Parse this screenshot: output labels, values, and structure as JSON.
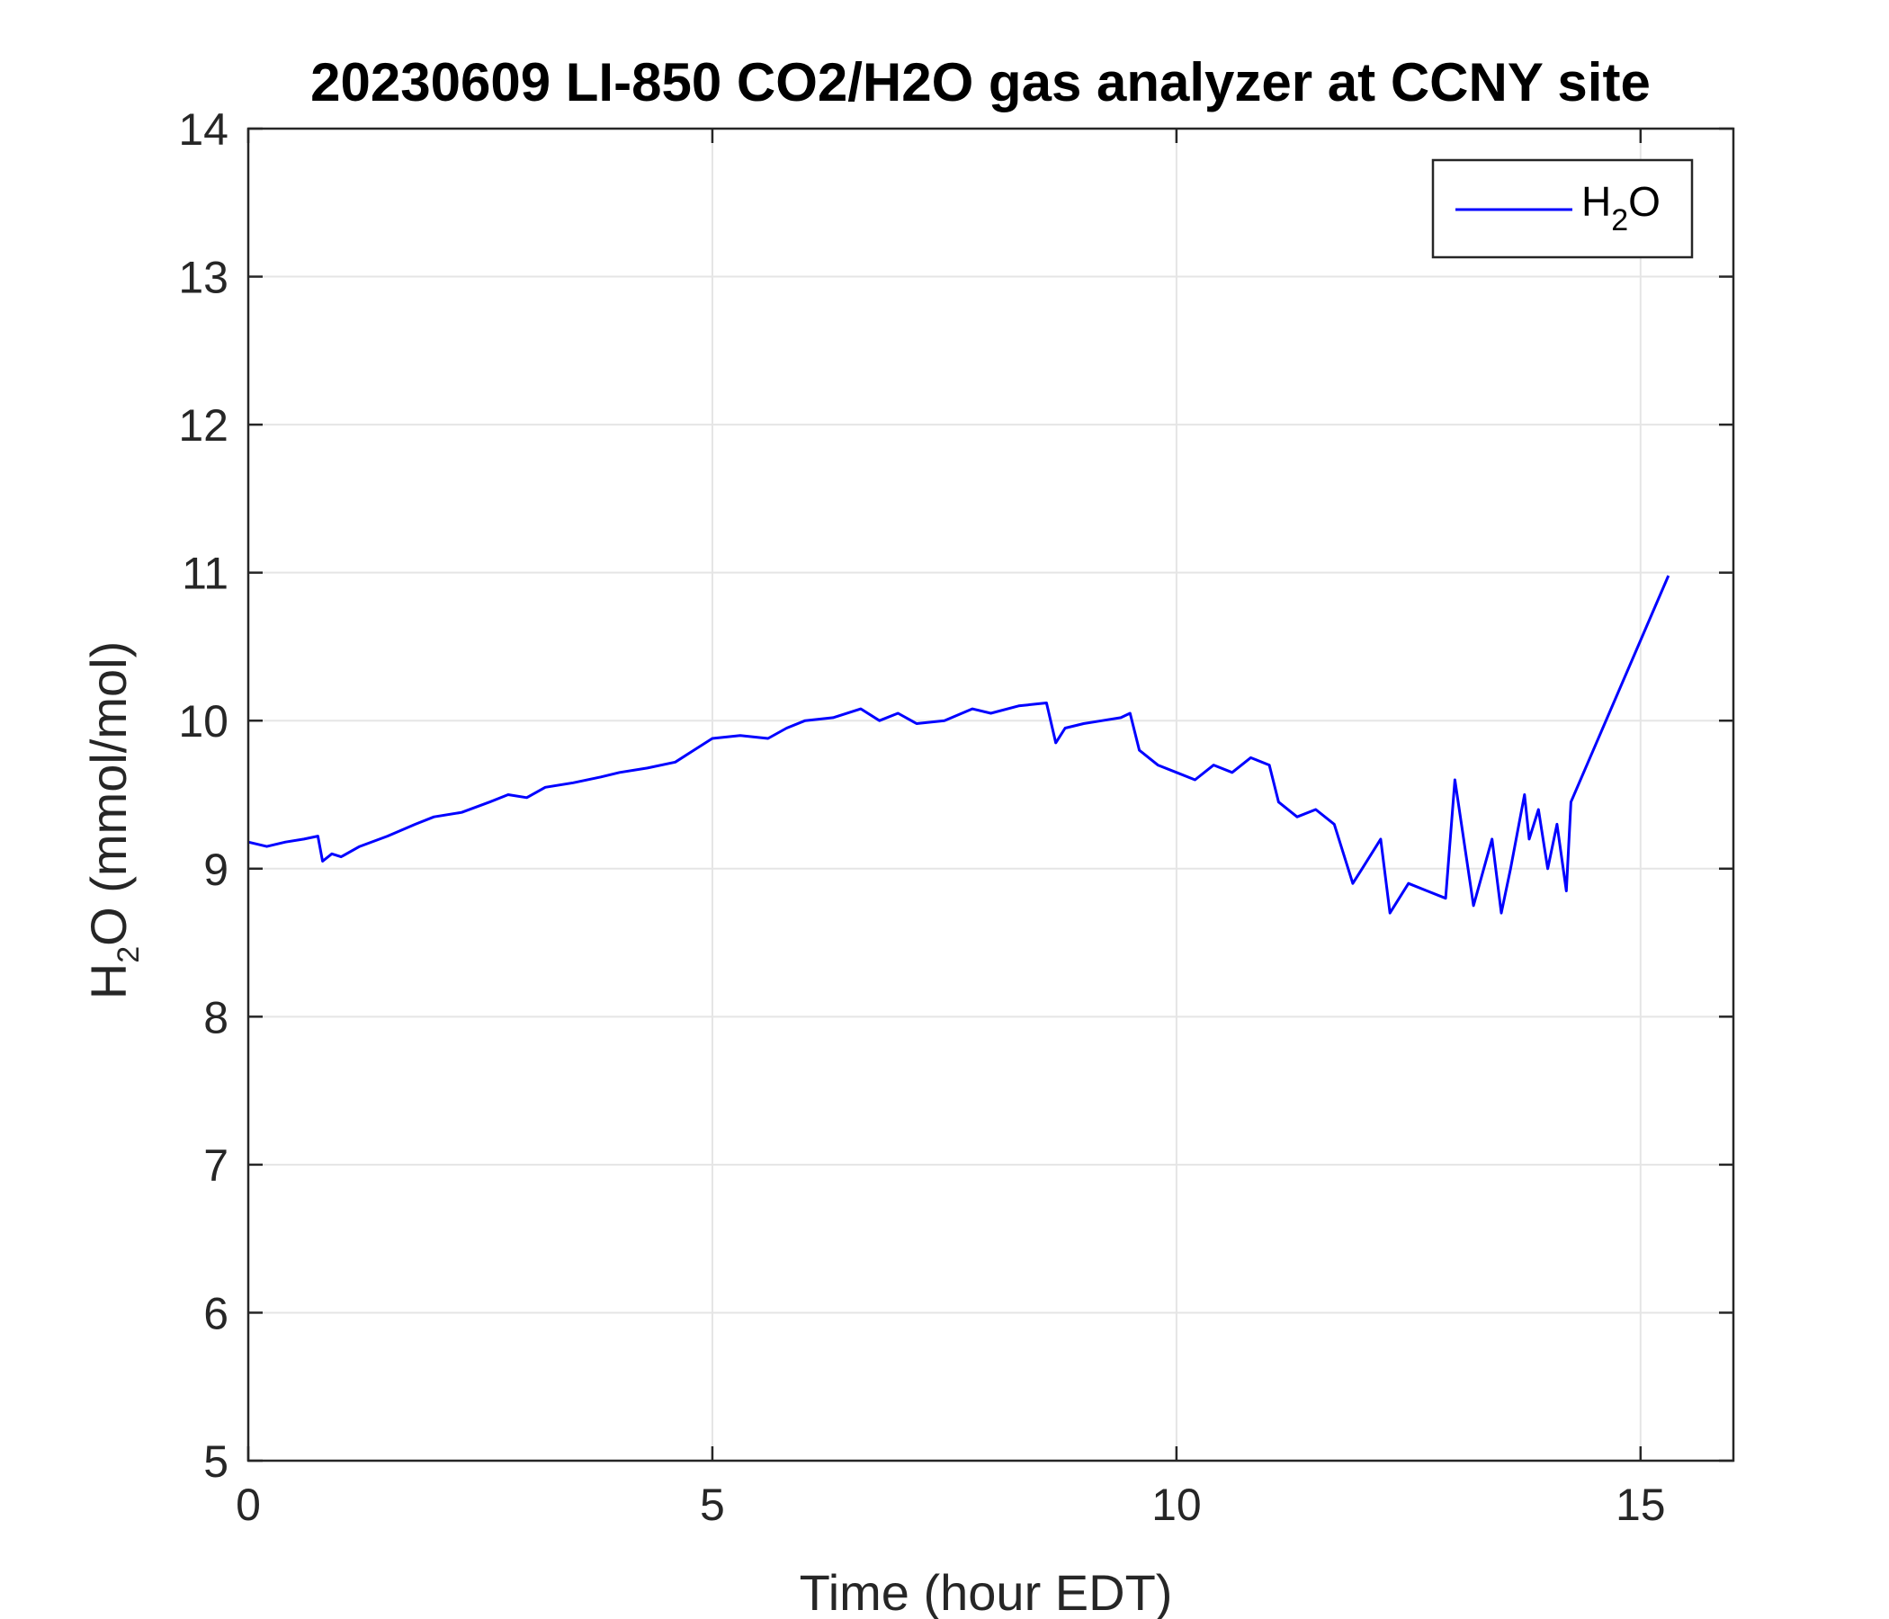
{
  "chart_data": {
    "type": "line",
    "title": "20230609 LI-850 CO2/H2O gas analyzer at CCNY site",
    "xlabel": "Time (hour EDT)",
    "ylabel": {
      "pre": "H",
      "sub": "2",
      "post": "O (mmol/mol)"
    },
    "xlim": [
      0,
      16
    ],
    "ylim": [
      5,
      14
    ],
    "xticks": [
      0,
      5,
      10,
      15
    ],
    "yticks": [
      5,
      6,
      7,
      8,
      9,
      10,
      11,
      12,
      13,
      14
    ],
    "grid": true,
    "legend": {
      "position": "top-right",
      "entries": [
        {
          "pre": "H",
          "sub": "2",
          "post": "O"
        }
      ]
    },
    "colors": {
      "series": "#0000ff",
      "grid": "#e5e5e5",
      "axis": "#262626"
    },
    "series": [
      {
        "name": "H2O",
        "x": [
          0.0,
          0.2,
          0.4,
          0.6,
          0.75,
          0.8,
          0.9,
          1.0,
          1.2,
          1.5,
          1.8,
          2.0,
          2.3,
          2.6,
          2.8,
          3.0,
          3.2,
          3.5,
          3.8,
          4.0,
          4.3,
          4.6,
          4.8,
          5.0,
          5.3,
          5.6,
          5.8,
          6.0,
          6.3,
          6.6,
          6.8,
          7.0,
          7.2,
          7.5,
          7.8,
          8.0,
          8.3,
          8.6,
          8.7,
          8.8,
          9.0,
          9.2,
          9.4,
          9.5,
          9.6,
          9.8,
          10.0,
          10.2,
          10.4,
          10.6,
          10.8,
          11.0,
          11.1,
          11.3,
          11.5,
          11.7,
          11.8,
          11.9,
          12.0,
          12.2,
          12.3,
          12.5,
          12.7,
          12.9,
          13.0,
          13.2,
          13.4,
          13.5,
          13.6,
          13.75,
          13.8,
          13.9,
          14.0,
          14.1,
          14.2,
          14.25,
          15.3
        ],
        "y": [
          9.18,
          9.15,
          9.18,
          9.2,
          9.22,
          9.05,
          9.1,
          9.08,
          9.15,
          9.22,
          9.3,
          9.35,
          9.38,
          9.45,
          9.5,
          9.48,
          9.55,
          9.58,
          9.62,
          9.65,
          9.68,
          9.72,
          9.8,
          9.88,
          9.9,
          9.88,
          9.95,
          10.0,
          10.02,
          10.08,
          10.0,
          10.05,
          9.98,
          10.0,
          10.08,
          10.05,
          10.1,
          10.12,
          9.85,
          9.95,
          9.98,
          10.0,
          10.02,
          10.05,
          9.8,
          9.7,
          9.65,
          9.6,
          9.7,
          9.65,
          9.75,
          9.7,
          9.45,
          9.35,
          9.4,
          9.3,
          9.1,
          8.9,
          9.0,
          9.2,
          8.7,
          8.9,
          8.85,
          8.8,
          9.6,
          8.75,
          9.2,
          8.7,
          9.0,
          9.5,
          9.2,
          9.4,
          9.0,
          9.3,
          8.85,
          9.45,
          10.98
        ]
      }
    ]
  }
}
